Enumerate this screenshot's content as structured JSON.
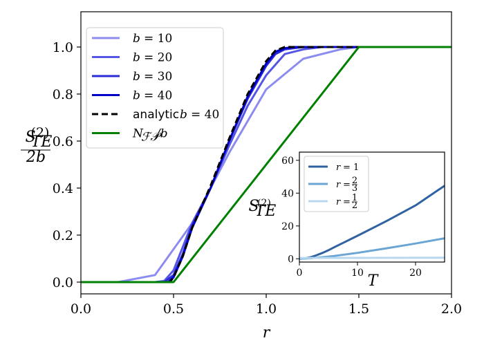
{
  "chart_data": [
    {
      "type": "line",
      "xlabel": "r",
      "ylabel_num": "S",
      "ylabel_sup": "(2)",
      "ylabel_sub": "TE",
      "ylabel_den": "2b",
      "xlim": [
        0.0,
        2.0
      ],
      "ylim": [
        -0.05,
        1.15
      ],
      "xticks": [
        0.0,
        0.5,
        1.0,
        1.5,
        2.0
      ],
      "xtick_labels": [
        "0.0",
        "0.5",
        "1.0",
        "1.5",
        "2.0"
      ],
      "yticks": [
        0.0,
        0.2,
        0.4,
        0.6,
        0.8,
        1.0
      ],
      "ytick_labels": [
        "0.0",
        "0.2",
        "0.4",
        "0.6",
        "0.8",
        "1.0"
      ],
      "grid": false,
      "legend_position": "top-left",
      "series": [
        {
          "name": "b = 10",
          "legend_var": "b",
          "legend_val": "= 10",
          "color": "#8c8cf0",
          "dash": "",
          "x": [
            0.0,
            0.2,
            0.4,
            0.6,
            0.8,
            1.0,
            1.2,
            1.4,
            1.5,
            2.0
          ],
          "y": [
            0.0,
            0.0,
            0.03,
            0.25,
            0.55,
            0.82,
            0.95,
            0.99,
            1.0,
            1.0
          ]
        },
        {
          "name": "b = 20",
          "legend_var": "b",
          "legend_val": "= 20",
          "color": "#5555e6",
          "dash": "",
          "x": [
            0.0,
            0.4,
            0.45,
            0.5,
            0.55,
            0.6,
            0.7,
            0.8,
            0.9,
            1.0,
            1.1,
            1.2,
            1.3,
            2.0
          ],
          "y": [
            0.0,
            0.0,
            0.005,
            0.05,
            0.15,
            0.25,
            0.4,
            0.58,
            0.75,
            0.88,
            0.97,
            0.99,
            1.0,
            1.0
          ]
        },
        {
          "name": "b = 30",
          "legend_var": "b",
          "legend_val": "= 30",
          "color": "#2a2ad8",
          "dash": "",
          "x": [
            0.0,
            0.45,
            0.5,
            0.55,
            0.6,
            0.7,
            0.8,
            0.9,
            1.0,
            1.05,
            1.1,
            1.2,
            2.0
          ],
          "y": [
            0.0,
            0.0,
            0.03,
            0.12,
            0.24,
            0.4,
            0.6,
            0.78,
            0.92,
            0.97,
            0.99,
            1.0,
            1.0
          ]
        },
        {
          "name": "b = 40",
          "legend_var": "b",
          "legend_val": "= 40",
          "color": "#0000c8",
          "dash": "",
          "x": [
            0.0,
            0.47,
            0.5,
            0.55,
            0.6,
            0.7,
            0.8,
            0.9,
            1.0,
            1.05,
            1.1,
            1.15,
            2.0
          ],
          "y": [
            0.0,
            0.0,
            0.02,
            0.11,
            0.23,
            0.4,
            0.6,
            0.79,
            0.93,
            0.98,
            0.995,
            1.0,
            1.0
          ]
        },
        {
          "name": "analytic b = 40",
          "legend_var": "b",
          "legend_prefix": "analytic",
          "legend_val": "= 40",
          "color": "#000000",
          "dash": "9,5",
          "x": [
            0.0,
            0.48,
            0.5,
            0.55,
            0.6,
            0.7,
            0.8,
            0.9,
            1.0,
            1.05,
            1.1,
            1.15,
            2.0
          ],
          "y": [
            0.0,
            0.0,
            0.02,
            0.11,
            0.23,
            0.41,
            0.61,
            0.8,
            0.94,
            0.985,
            1.0,
            1.0,
            1.0
          ]
        },
        {
          "name": "N_FP / b",
          "legend_var": "N",
          "legend_sub": "ℱ𝒫",
          "legend_val": "/b",
          "color": "#008000",
          "dash": "",
          "x": [
            0.0,
            0.5,
            1.5,
            2.0
          ],
          "y": [
            0.0,
            0.0,
            1.0,
            1.0
          ]
        }
      ]
    },
    {
      "type": "line",
      "xlabel": "T",
      "ylabel_num": "S",
      "ylabel_sup": "(2)",
      "ylabel_sub": "TE",
      "xlim": [
        0,
        25
      ],
      "ylim": [
        -2,
        65
      ],
      "xticks": [
        0,
        10,
        20
      ],
      "xtick_labels": [
        "0",
        "10",
        "20"
      ],
      "yticks": [
        0,
        20,
        40,
        60
      ],
      "ytick_labels": [
        "0",
        "20",
        "40",
        "60"
      ],
      "grid": false,
      "legend_position": "top-left",
      "series": [
        {
          "name": "r = 1",
          "legend_var": "r",
          "legend_val": "= 1",
          "color": "#2f62a0",
          "x": [
            0,
            1,
            2,
            3,
            4,
            5,
            6,
            8,
            10,
            15,
            20,
            25
          ],
          "y": [
            0,
            0.3,
            1,
            2.2,
            3.6,
            5.2,
            7,
            10.5,
            14,
            23,
            32.5,
            44.5
          ]
        },
        {
          "name": "r = 2/3",
          "legend_var": "r",
          "legend_val": "= 2/3",
          "legend_num": "2",
          "legend_den": "3",
          "color": "#6aa5d4",
          "x": [
            0,
            2,
            4,
            6,
            10,
            15,
            20,
            25
          ],
          "y": [
            0,
            0.3,
            1,
            1.7,
            3.6,
            6.4,
            9.3,
            12.5
          ]
        },
        {
          "name": "r = 1/2",
          "legend_var": "r",
          "legend_val": "= 1/2",
          "legend_num": "1",
          "legend_den": "2",
          "color": "#b7d8ef",
          "x": [
            0,
            25
          ],
          "y": [
            0.5,
            0.6
          ]
        }
      ]
    }
  ]
}
